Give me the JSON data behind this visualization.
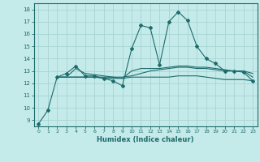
{
  "xlabel": "Humidex (Indice chaleur)",
  "bg_color": "#c5eaea",
  "grid_color": "#a8d4d4",
  "line_color": "#1e6b6b",
  "xlim": [
    -0.5,
    23.5
  ],
  "ylim": [
    8.5,
    18.5
  ],
  "yticks": [
    9,
    10,
    11,
    12,
    13,
    14,
    15,
    16,
    17,
    18
  ],
  "xticks": [
    0,
    1,
    2,
    3,
    4,
    5,
    6,
    7,
    8,
    9,
    10,
    11,
    12,
    13,
    14,
    15,
    16,
    17,
    18,
    19,
    20,
    21,
    22,
    23
  ],
  "main_line": {
    "x": [
      0,
      1,
      2,
      3,
      4,
      5,
      6,
      7,
      8,
      9,
      10,
      11,
      12,
      13,
      14,
      15,
      16,
      17,
      18,
      19,
      20,
      21,
      22,
      23
    ],
    "y": [
      8.7,
      9.8,
      12.5,
      12.8,
      13.4,
      12.6,
      12.6,
      12.4,
      12.2,
      11.8,
      14.8,
      16.7,
      16.5,
      13.5,
      17.0,
      17.8,
      17.1,
      15.0,
      14.0,
      13.6,
      13.0,
      13.0,
      12.9,
      12.2
    ]
  },
  "line2": {
    "x": [
      2,
      3,
      4,
      5,
      6,
      7,
      8,
      9,
      10,
      11,
      12,
      13,
      14,
      15,
      16,
      17,
      18,
      19,
      20,
      21,
      22,
      23
    ],
    "y": [
      12.5,
      12.5,
      12.5,
      12.5,
      12.5,
      12.5,
      12.5,
      12.5,
      12.6,
      12.8,
      13.0,
      13.1,
      13.2,
      13.3,
      13.3,
      13.2,
      13.2,
      13.1,
      13.0,
      13.0,
      13.0,
      12.5
    ]
  },
  "line3": {
    "x": [
      2,
      3,
      4,
      5,
      6,
      7,
      8,
      9,
      10,
      11,
      12,
      13,
      14,
      15,
      16,
      17,
      18,
      19,
      20,
      21,
      22,
      23
    ],
    "y": [
      12.5,
      12.5,
      12.5,
      12.5,
      12.5,
      12.4,
      12.4,
      12.4,
      12.5,
      12.5,
      12.5,
      12.5,
      12.5,
      12.6,
      12.6,
      12.6,
      12.5,
      12.4,
      12.3,
      12.3,
      12.3,
      12.2
    ]
  },
  "line4": {
    "x": [
      2,
      3,
      4,
      5,
      6,
      7,
      8,
      9,
      10,
      11,
      12,
      13,
      14,
      15,
      16,
      17,
      18,
      19,
      20,
      21,
      22,
      23
    ],
    "y": [
      12.5,
      12.5,
      13.2,
      12.8,
      12.7,
      12.6,
      12.5,
      12.4,
      13.0,
      13.2,
      13.2,
      13.2,
      13.3,
      13.4,
      13.4,
      13.3,
      13.3,
      13.2,
      13.1,
      13.0,
      13.0,
      12.8
    ]
  }
}
